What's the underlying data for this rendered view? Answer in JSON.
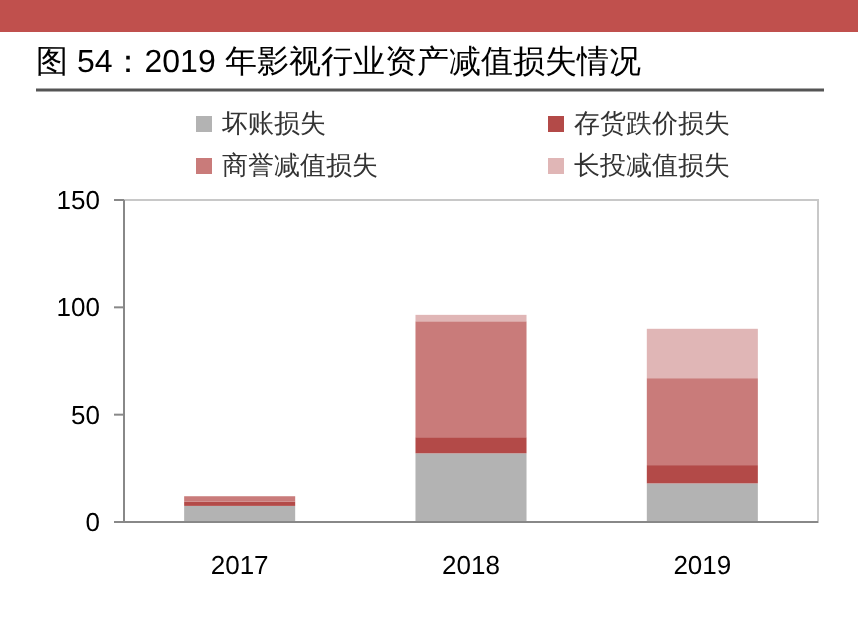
{
  "chart_data": {
    "type": "bar",
    "title": "图 54：2019 年影视行业资产减值损失情况",
    "categories": [
      "2017",
      "2018",
      "2019"
    ],
    "stacked": true,
    "series": [
      {
        "name": "坏账损失",
        "color": "#b3b3b3",
        "values": [
          7.5,
          32,
          18
        ]
      },
      {
        "name": "存货跌价损失",
        "color": "#b34a48",
        "values": [
          2,
          7.5,
          8.5
        ]
      },
      {
        "name": "商誉减值损失",
        "color": "#c97b7a",
        "values": [
          2.5,
          54,
          40.5
        ]
      },
      {
        "name": "长投减值损失",
        "color": "#e0b6b6",
        "values": [
          0,
          3,
          23
        ]
      }
    ],
    "ylim": [
      0,
      150
    ],
    "yticks": [
      0,
      50,
      100,
      150
    ],
    "grid": false,
    "legend": "top"
  }
}
